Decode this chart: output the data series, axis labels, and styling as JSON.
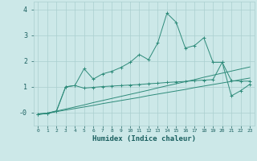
{
  "xlabel": "Humidex (Indice chaleur)",
  "x": [
    0,
    1,
    2,
    3,
    4,
    5,
    6,
    7,
    8,
    9,
    10,
    11,
    12,
    13,
    14,
    15,
    16,
    17,
    18,
    19,
    20,
    21,
    22,
    23
  ],
  "line1": [
    -0.05,
    -0.02,
    0.05,
    1.0,
    1.05,
    1.7,
    1.3,
    1.5,
    1.6,
    1.75,
    1.95,
    2.25,
    2.05,
    2.7,
    3.85,
    3.5,
    2.5,
    2.6,
    2.9,
    1.95,
    1.95,
    0.65,
    0.85,
    1.1
  ],
  "line2": [
    -0.05,
    -0.02,
    0.07,
    1.0,
    1.05,
    0.95,
    0.98,
    1.01,
    1.03,
    1.05,
    1.07,
    1.09,
    1.12,
    1.14,
    1.17,
    1.19,
    1.21,
    1.24,
    1.26,
    1.28,
    1.95,
    1.24,
    1.22,
    1.22
  ],
  "line3": [
    -0.07,
    -0.03,
    0.06,
    0.14,
    0.22,
    0.3,
    0.39,
    0.47,
    0.55,
    0.63,
    0.71,
    0.79,
    0.87,
    0.96,
    1.04,
    1.12,
    1.2,
    1.28,
    1.37,
    1.45,
    1.53,
    1.61,
    1.69,
    1.77
  ],
  "line4": [
    -0.07,
    -0.03,
    0.04,
    0.1,
    0.16,
    0.22,
    0.28,
    0.35,
    0.41,
    0.47,
    0.53,
    0.59,
    0.66,
    0.72,
    0.78,
    0.84,
    0.9,
    0.97,
    1.03,
    1.09,
    1.15,
    1.21,
    1.28,
    1.34
  ],
  "color": "#2e8b7a",
  "bg_color": "#cce8e8",
  "grid_color": "#aacfcf",
  "ylim": [
    -0.5,
    4.3
  ],
  "xlim": [
    -0.5,
    23.5
  ]
}
